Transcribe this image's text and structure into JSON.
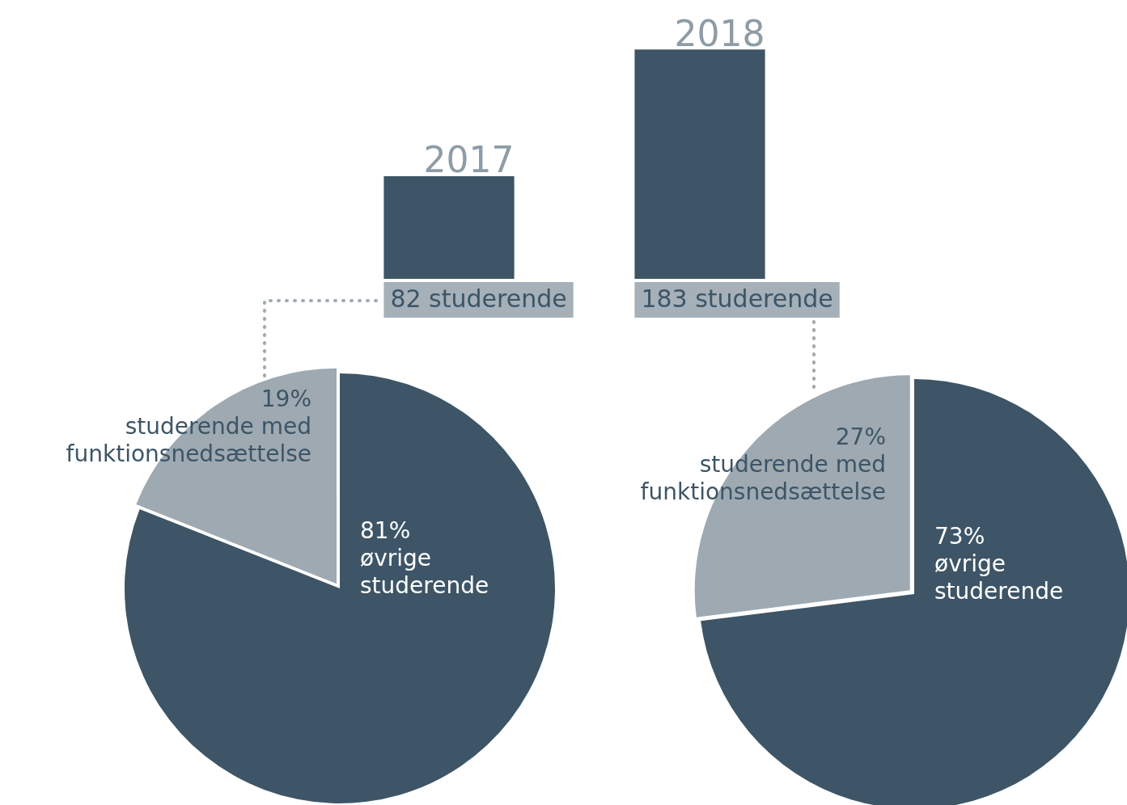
{
  "chart_data": [
    {
      "type": "bar",
      "categories": [
        "2017",
        "2018"
      ],
      "values": [
        82,
        183
      ],
      "color": "#3d5566",
      "value_labels": [
        "82 studerende",
        "183 studerende"
      ]
    },
    {
      "type": "pie",
      "categories": [
        "øvrige studerende",
        "studerende med funktionsnedsættelse"
      ],
      "values": [
        81,
        19
      ],
      "colors": [
        "#3d5566",
        "#9ea9b1"
      ],
      "value_labels": [
        "81%",
        "19%"
      ]
    },
    {
      "type": "pie",
      "categories": [
        "øvrige studerende",
        "studerende med funktionsnedsættelse"
      ],
      "values": [
        73,
        27
      ],
      "colors": [
        "#3d5566",
        "#9ea9b1"
      ],
      "value_labels": [
        "73%",
        "27%"
      ]
    }
  ]
}
